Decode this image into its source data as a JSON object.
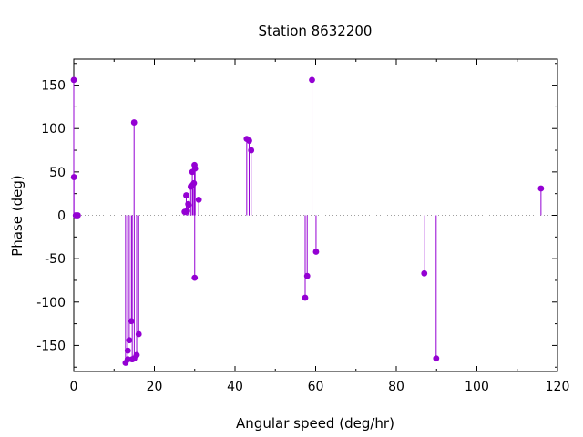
{
  "chart_data": {
    "type": "scatter",
    "style": "impulses-with-points",
    "title": "Station 8632200",
    "xlabel": "Angular speed (deg/hr)",
    "ylabel": "Phase (deg)",
    "xlim": [
      0,
      120
    ],
    "ylim": [
      -180,
      180
    ],
    "xticks": [
      0,
      20,
      40,
      60,
      80,
      100,
      120
    ],
    "yticks": [
      -150,
      -100,
      -50,
      0,
      50,
      100,
      150
    ],
    "grid": false,
    "zero_line": true,
    "color": "#9400d3",
    "points": [
      {
        "x": 0.0,
        "y": 156
      },
      {
        "x": 0.04,
        "y": 44
      },
      {
        "x": 0.5,
        "y": 0
      },
      {
        "x": 1.0,
        "y": 0
      },
      {
        "x": 12.85,
        "y": -170
      },
      {
        "x": 13.4,
        "y": -156
      },
      {
        "x": 13.4,
        "y": -166
      },
      {
        "x": 13.76,
        "y": -144
      },
      {
        "x": 14.3,
        "y": -122
      },
      {
        "x": 14.5,
        "y": -166
      },
      {
        "x": 14.96,
        "y": 107
      },
      {
        "x": 15.0,
        "y": -165
      },
      {
        "x": 15.6,
        "y": -161
      },
      {
        "x": 16.1,
        "y": -137
      },
      {
        "x": 27.5,
        "y": 4
      },
      {
        "x": 27.9,
        "y": 23
      },
      {
        "x": 28.1,
        "y": 5
      },
      {
        "x": 28.4,
        "y": 13
      },
      {
        "x": 28.5,
        "y": 12
      },
      {
        "x": 29.0,
        "y": 33
      },
      {
        "x": 29.4,
        "y": 50
      },
      {
        "x": 29.5,
        "y": 35
      },
      {
        "x": 29.8,
        "y": 37
      },
      {
        "x": 29.95,
        "y": 58
      },
      {
        "x": 30.0,
        "y": -72
      },
      {
        "x": 30.1,
        "y": 54
      },
      {
        "x": 31.0,
        "y": 18
      },
      {
        "x": 42.9,
        "y": 88
      },
      {
        "x": 43.5,
        "y": 86
      },
      {
        "x": 44.0,
        "y": 75
      },
      {
        "x": 57.4,
        "y": -95
      },
      {
        "x": 57.9,
        "y": -70
      },
      {
        "x": 59.1,
        "y": 156
      },
      {
        "x": 60.1,
        "y": -42
      },
      {
        "x": 86.95,
        "y": -67
      },
      {
        "x": 89.9,
        "y": -165
      },
      {
        "x": 115.9,
        "y": 31
      }
    ]
  }
}
